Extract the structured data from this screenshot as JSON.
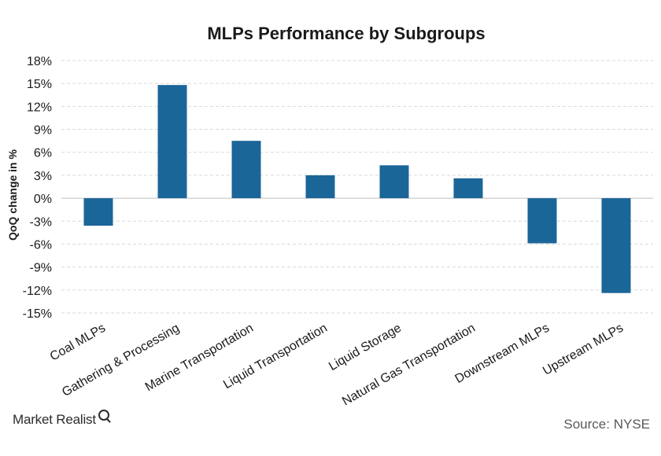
{
  "chart_data": {
    "type": "bar",
    "title": "MLPs Performance by Subgroups",
    "ylabel": "QoQ change in %",
    "xlabel": "",
    "categories": [
      "Coal MLPs",
      "Gathering & Processing",
      "Marine Transportation",
      "Liquid Transportation",
      "Liquid Storage",
      "Natural Gas Transportation",
      "Downstream MLPs",
      "Upstream MLPs"
    ],
    "values": [
      -3.6,
      14.8,
      7.5,
      3.0,
      4.3,
      2.6,
      -5.9,
      -12.4
    ],
    "ylim": [
      -15,
      18
    ],
    "yticks": [
      18,
      15,
      12,
      9,
      6,
      3,
      0,
      -3,
      -6,
      -9,
      -12,
      -15
    ],
    "tick_suffix": "%",
    "grid": true,
    "bar_color": "#1b6699"
  },
  "footer": {
    "brand": "Market Realist",
    "source": "Source: NYSE"
  }
}
